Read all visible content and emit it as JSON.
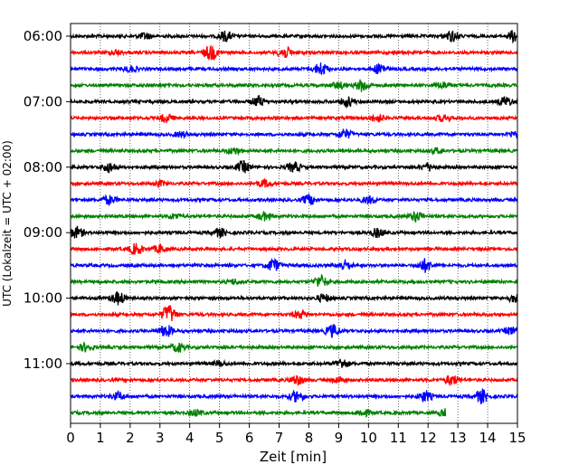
{
  "chart_data": {
    "type": "line",
    "xlabel": "Zeit  [min]",
    "ylabel": "UTC (Lokalzeit = UTC + 02:00)",
    "xlim": [
      0,
      15
    ],
    "x_ticks": [
      0,
      1,
      2,
      3,
      4,
      5,
      6,
      7,
      8,
      9,
      10,
      11,
      12,
      13,
      14,
      15
    ],
    "y_tick_labels": [
      "06:00",
      "07:00",
      "08:00",
      "09:00",
      "10:00",
      "11:00"
    ],
    "trace_interval_min": 15,
    "trace_colors": [
      "#000000",
      "#ff0000",
      "#0000ff",
      "#008000"
    ],
    "grid": "vertical dotted at each minute",
    "traces": [
      {
        "start": "06:00",
        "end_min": 15,
        "events": [
          {
            "t": 5.2,
            "a": 0.8
          },
          {
            "t": 12.8,
            "a": 0.9
          },
          {
            "t": 14.9,
            "a": 1.0
          },
          {
            "t": 2.5,
            "a": 0.5
          }
        ]
      },
      {
        "start": "06:15",
        "end_min": 15,
        "events": [
          {
            "t": 4.7,
            "a": 1.2
          },
          {
            "t": 7.2,
            "a": 0.9
          },
          {
            "t": 1.5,
            "a": 0.4
          }
        ]
      },
      {
        "start": "06:30",
        "end_min": 15,
        "events": [
          {
            "t": 8.4,
            "a": 1.0
          },
          {
            "t": 10.4,
            "a": 0.9
          },
          {
            "t": 2.0,
            "a": 0.5
          }
        ]
      },
      {
        "start": "06:45",
        "end_min": 15,
        "events": [
          {
            "t": 9.8,
            "a": 1.0
          },
          {
            "t": 9.0,
            "a": 0.5
          },
          {
            "t": 12.5,
            "a": 0.5
          }
        ]
      },
      {
        "start": "07:00",
        "end_min": 15,
        "events": [
          {
            "t": 6.3,
            "a": 0.8
          },
          {
            "t": 9.3,
            "a": 0.8
          },
          {
            "t": 14.6,
            "a": 0.8
          }
        ]
      },
      {
        "start": "07:15",
        "end_min": 15,
        "events": [
          {
            "t": 3.2,
            "a": 0.6
          },
          {
            "t": 10.3,
            "a": 0.6
          },
          {
            "t": 12.5,
            "a": 0.5
          }
        ]
      },
      {
        "start": "07:30",
        "end_min": 15,
        "events": [
          {
            "t": 9.2,
            "a": 0.8
          },
          {
            "t": 3.7,
            "a": 0.4
          },
          {
            "t": 14.9,
            "a": 0.5
          }
        ]
      },
      {
        "start": "07:45",
        "end_min": 15,
        "events": [
          {
            "t": 5.5,
            "a": 0.5
          },
          {
            "t": 12.3,
            "a": 0.4
          }
        ]
      },
      {
        "start": "08:00",
        "end_min": 15,
        "events": [
          {
            "t": 1.3,
            "a": 0.8
          },
          {
            "t": 5.8,
            "a": 0.9
          },
          {
            "t": 7.5,
            "a": 0.8
          },
          {
            "t": 12.0,
            "a": 0.6
          }
        ]
      },
      {
        "start": "08:15",
        "end_min": 15,
        "events": [
          {
            "t": 6.5,
            "a": 0.6
          },
          {
            "t": 3.0,
            "a": 0.4
          }
        ]
      },
      {
        "start": "08:30",
        "end_min": 15,
        "events": [
          {
            "t": 1.3,
            "a": 0.7
          },
          {
            "t": 8.0,
            "a": 0.8
          },
          {
            "t": 10.0,
            "a": 0.6
          }
        ]
      },
      {
        "start": "08:45",
        "end_min": 15,
        "events": [
          {
            "t": 6.5,
            "a": 0.6
          },
          {
            "t": 11.6,
            "a": 0.8
          },
          {
            "t": 3.5,
            "a": 0.4
          }
        ]
      },
      {
        "start": "09:00",
        "end_min": 15,
        "events": [
          {
            "t": 0.2,
            "a": 0.9
          },
          {
            "t": 5.0,
            "a": 0.7
          },
          {
            "t": 10.3,
            "a": 0.7
          }
        ]
      },
      {
        "start": "09:15",
        "end_min": 15,
        "events": [
          {
            "t": 2.2,
            "a": 0.9
          },
          {
            "t": 3.0,
            "a": 0.6
          }
        ]
      },
      {
        "start": "09:30",
        "end_min": 15,
        "events": [
          {
            "t": 6.8,
            "a": 1.0
          },
          {
            "t": 9.2,
            "a": 0.8
          },
          {
            "t": 11.9,
            "a": 1.0
          }
        ]
      },
      {
        "start": "09:45",
        "end_min": 15,
        "events": [
          {
            "t": 8.4,
            "a": 1.0
          },
          {
            "t": 5.5,
            "a": 0.4
          }
        ]
      },
      {
        "start": "10:00",
        "end_min": 15,
        "events": [
          {
            "t": 1.6,
            "a": 1.0
          },
          {
            "t": 8.5,
            "a": 0.6
          },
          {
            "t": 14.9,
            "a": 0.6
          }
        ]
      },
      {
        "start": "10:15",
        "end_min": 15,
        "events": [
          {
            "t": 3.3,
            "a": 1.5
          },
          {
            "t": 7.7,
            "a": 0.6
          }
        ]
      },
      {
        "start": "10:30",
        "end_min": 15,
        "events": [
          {
            "t": 3.2,
            "a": 1.0
          },
          {
            "t": 8.8,
            "a": 1.0
          },
          {
            "t": 14.8,
            "a": 0.6
          }
        ]
      },
      {
        "start": "10:45",
        "end_min": 15,
        "events": [
          {
            "t": 0.5,
            "a": 0.6
          },
          {
            "t": 3.6,
            "a": 0.7
          }
        ]
      },
      {
        "start": "11:00",
        "end_min": 15,
        "events": [
          {
            "t": 9.1,
            "a": 0.8
          },
          {
            "t": 5.0,
            "a": 0.4
          }
        ]
      },
      {
        "start": "11:15",
        "end_min": 15,
        "events": [
          {
            "t": 7.6,
            "a": 0.8
          },
          {
            "t": 12.8,
            "a": 0.8
          },
          {
            "t": 9.0,
            "a": 0.5
          }
        ]
      },
      {
        "start": "11:30",
        "end_min": 15,
        "events": [
          {
            "t": 1.6,
            "a": 0.6
          },
          {
            "t": 7.6,
            "a": 0.9
          },
          {
            "t": 11.9,
            "a": 0.8
          },
          {
            "t": 13.8,
            "a": 1.1
          }
        ]
      },
      {
        "start": "11:45",
        "end_min": 12.6,
        "events": [
          {
            "t": 4.2,
            "a": 0.5
          },
          {
            "t": 9.8,
            "a": 0.6
          },
          {
            "t": 12.6,
            "a": 0.7
          }
        ]
      }
    ]
  }
}
